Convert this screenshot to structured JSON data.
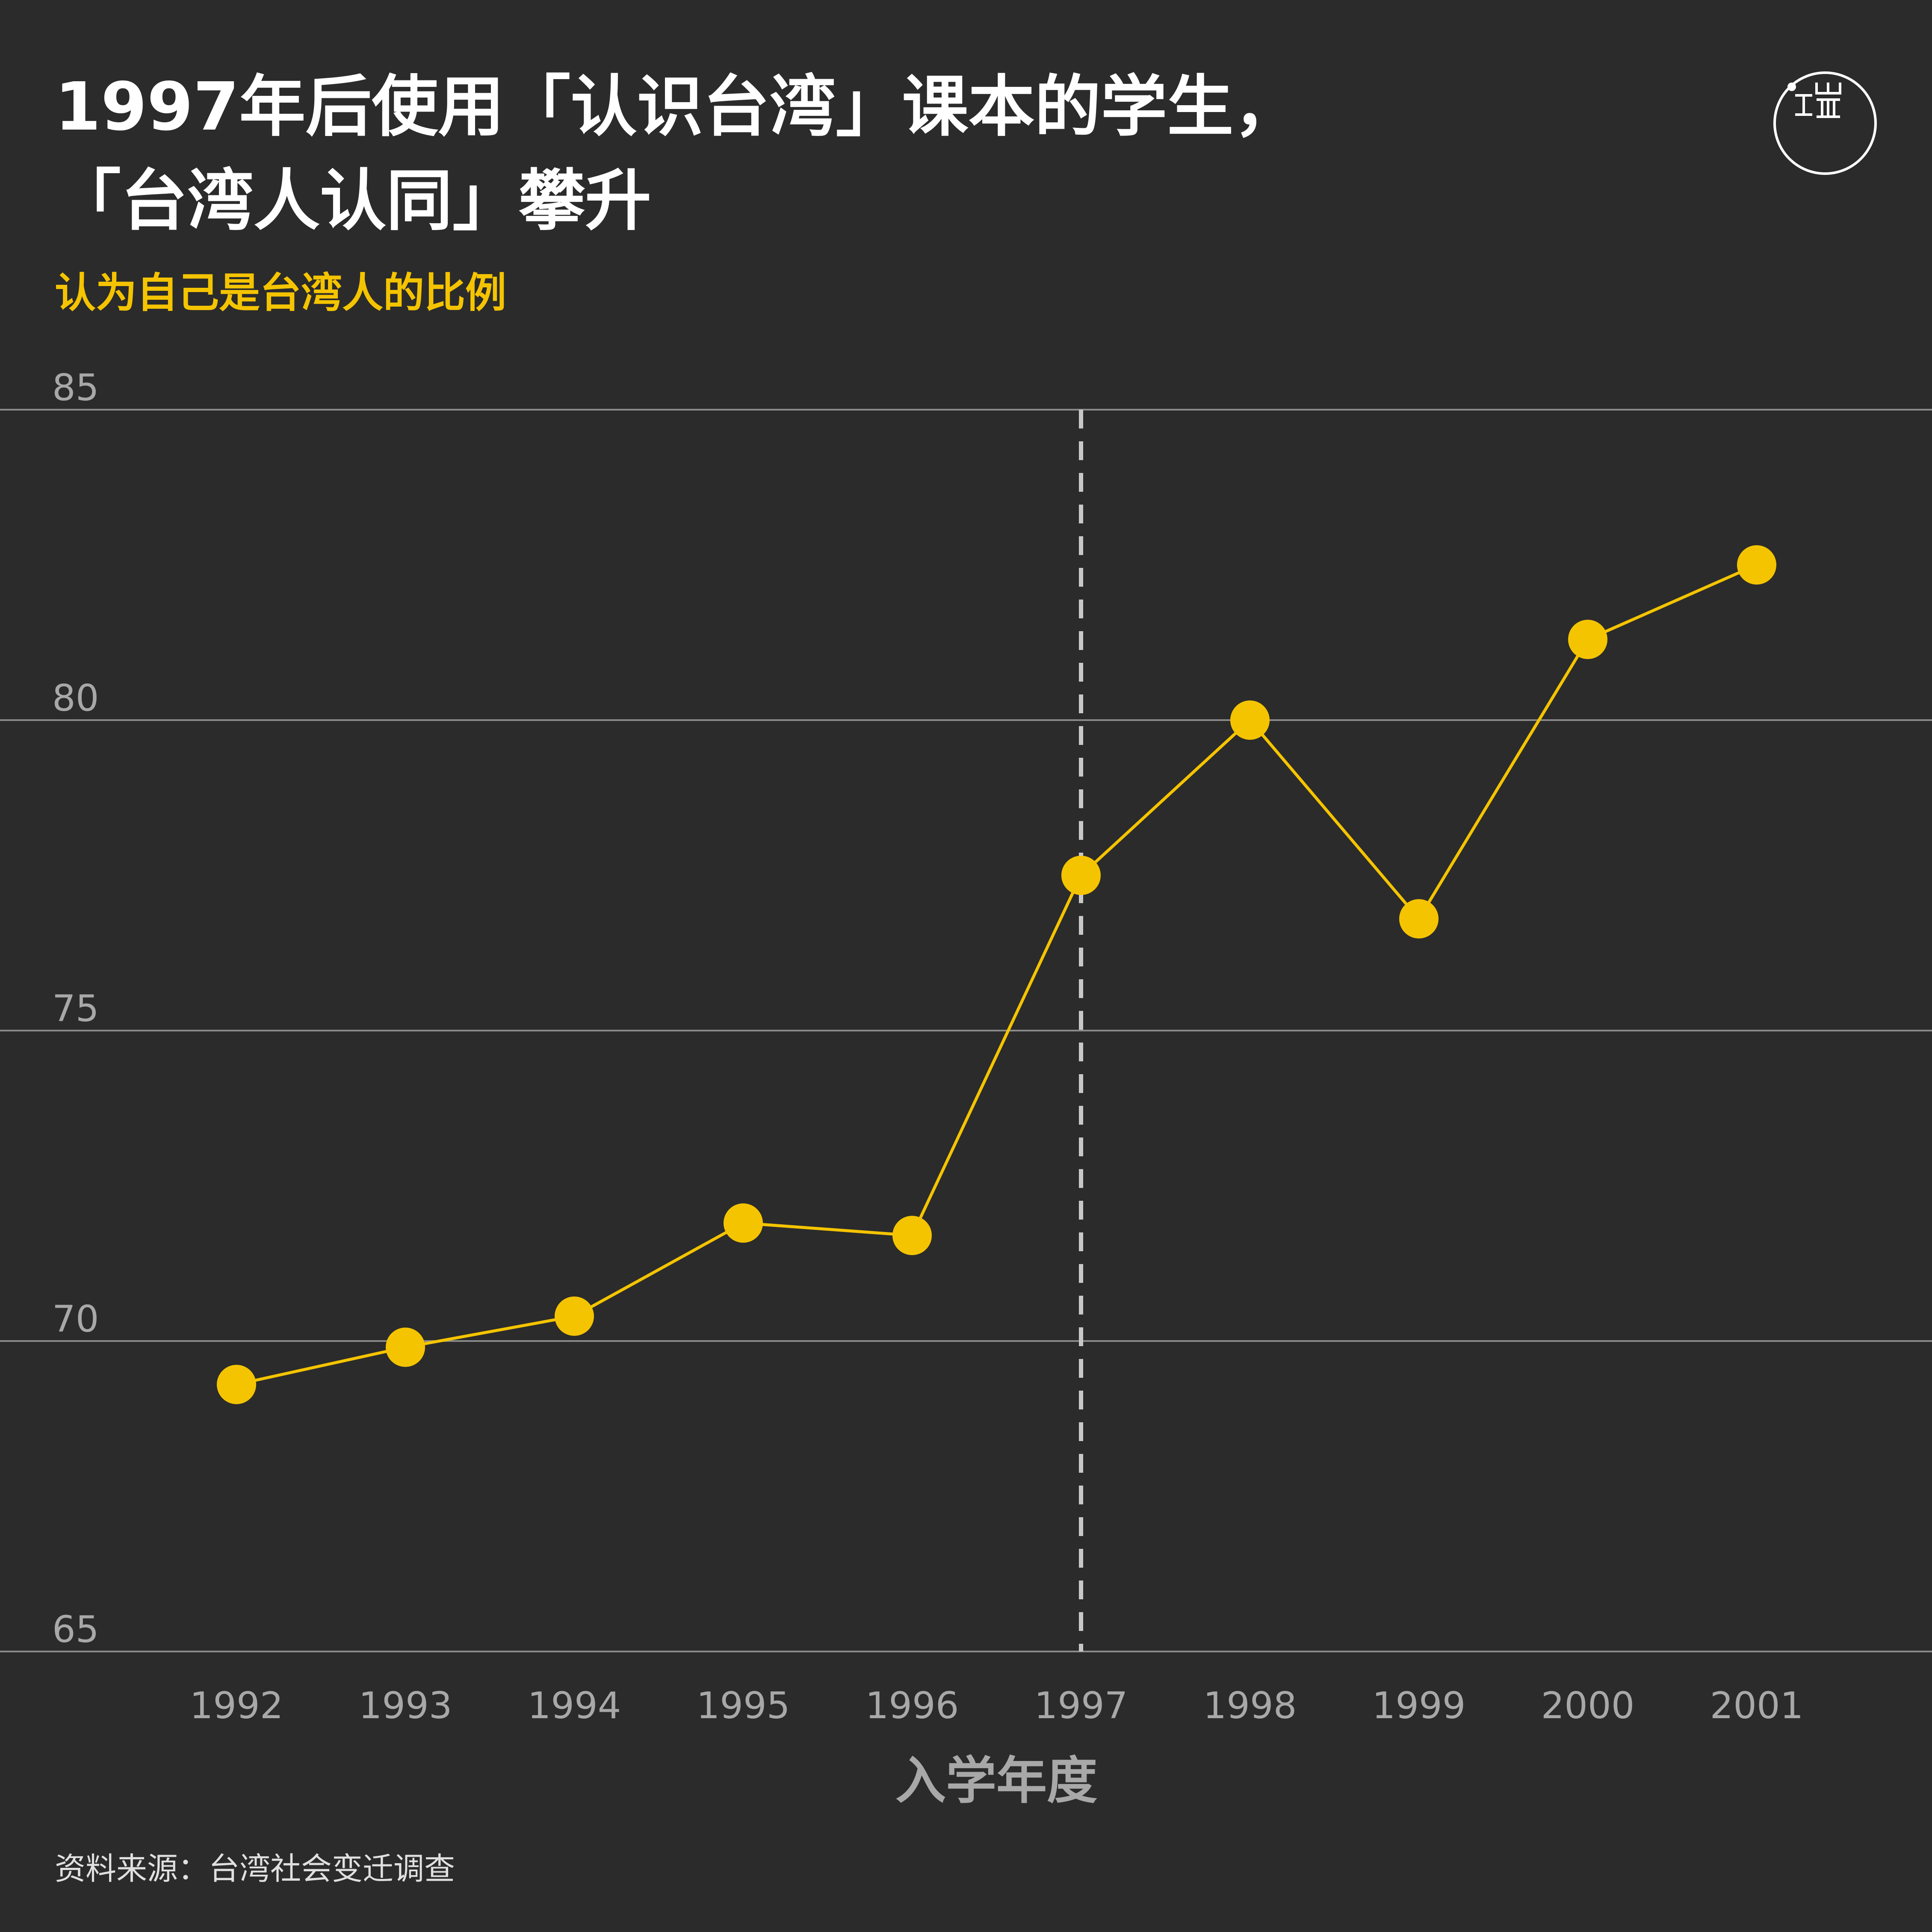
{
  "header": {
    "title_line1": "1997年后使用「认识台湾」课本的学生，",
    "title_line2": "「台湾人认同」攀升",
    "subtitle": "认为自己是台湾人的比例",
    "logo_icon": "theinitium-logo-icon"
  },
  "footer": {
    "source": "资料来源：台湾社会变迁调查"
  },
  "colors": {
    "background": "#2b2b2b",
    "accent": "#f5c400",
    "grid": "#8a8a8a",
    "tick_text": "#a8a8a8",
    "reference_line": "#c8c8c8"
  },
  "chart_data": {
    "type": "line",
    "title": "1997年后使用「认识台湾」课本的学生，「台湾人认同」攀升",
    "ylabel": "认为自己是台湾人的比例",
    "xlabel": "入学年度",
    "x": [
      "1992",
      "1993",
      "1994",
      "1995",
      "1996",
      "1997",
      "1998",
      "1999",
      "2000",
      "2001"
    ],
    "series": [
      {
        "values": [
          69.3,
          69.9,
          70.4,
          71.9,
          71.7,
          77.5,
          80.0,
          76.8,
          81.3,
          82.5
        ],
        "color": "#f5c400"
      }
    ],
    "ylim": [
      65,
      85
    ],
    "yticks": [
      "65",
      "70",
      "75",
      "80",
      "85"
    ],
    "grid": true,
    "reference_line": {
      "x": "1997",
      "style": "dashed"
    }
  }
}
